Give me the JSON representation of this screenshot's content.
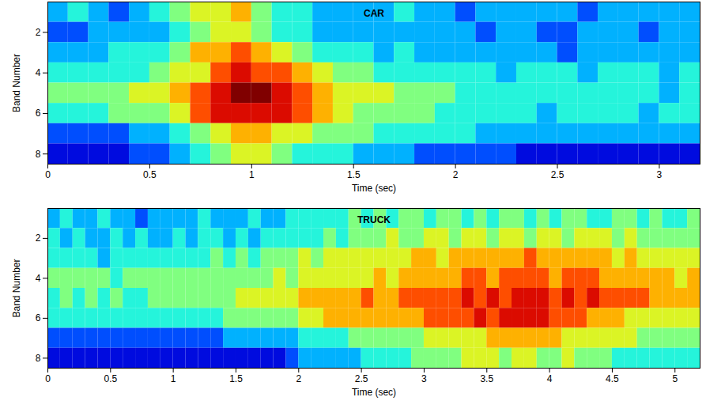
{
  "chart_data": [
    {
      "type": "heatmap",
      "title": "CAR",
      "x_label": "Time (sec)",
      "y_label": "Band Number",
      "bands": [
        1,
        2,
        3,
        4,
        5,
        6,
        7,
        8
      ],
      "time_edges": [
        0,
        0.1,
        0.2,
        0.3,
        0.4,
        0.5,
        0.6,
        0.7,
        0.8,
        0.9,
        1.0,
        1.1,
        1.2,
        1.3,
        1.4,
        1.5,
        1.6,
        1.7,
        1.8,
        1.9,
        2.0,
        2.1,
        2.2,
        2.3,
        2.4,
        2.5,
        2.6,
        2.7,
        2.8,
        2.9,
        3.0,
        3.1,
        3.2
      ],
      "cells": [
        [
          3,
          4,
          3,
          2,
          3,
          4,
          5,
          6,
          6,
          7,
          5,
          4,
          4,
          3,
          3,
          3,
          3,
          4,
          3,
          3,
          2,
          3,
          3,
          3,
          3,
          3,
          2,
          3,
          3,
          3,
          3,
          3
        ],
        [
          2,
          2,
          3,
          3,
          3,
          3,
          4,
          5,
          6,
          6,
          5,
          4,
          4,
          3,
          3,
          3,
          3,
          3,
          3,
          3,
          3,
          2,
          3,
          3,
          2,
          2,
          3,
          3,
          3,
          2,
          3,
          3
        ],
        [
          3,
          3,
          3,
          4,
          4,
          4,
          5,
          7,
          7,
          8,
          7,
          6,
          5,
          4,
          4,
          4,
          3,
          4,
          3,
          3,
          3,
          3,
          3,
          3,
          3,
          2,
          3,
          3,
          3,
          3,
          3,
          3
        ],
        [
          4,
          4,
          4,
          4,
          4,
          5,
          6,
          6,
          8,
          9,
          8,
          8,
          7,
          6,
          5,
          5,
          4,
          4,
          4,
          4,
          4,
          4,
          3,
          4,
          4,
          4,
          3,
          4,
          4,
          4,
          3,
          4
        ],
        [
          5,
          5,
          5,
          5,
          6,
          6,
          7,
          8,
          9,
          10,
          10,
          9,
          8,
          7,
          6,
          6,
          6,
          5,
          5,
          5,
          4,
          4,
          4,
          4,
          4,
          4,
          4,
          4,
          4,
          4,
          3,
          4
        ],
        [
          4,
          4,
          4,
          5,
          5,
          5,
          6,
          8,
          9,
          9,
          9,
          9,
          8,
          7,
          6,
          5,
          5,
          5,
          5,
          4,
          4,
          4,
          4,
          4,
          3,
          4,
          4,
          4,
          4,
          3,
          4,
          4
        ],
        [
          2,
          2,
          2,
          2,
          3,
          3,
          4,
          5,
          6,
          7,
          7,
          6,
          6,
          5,
          5,
          5,
          4,
          4,
          4,
          4,
          4,
          3,
          3,
          3,
          3,
          3,
          3,
          3,
          3,
          3,
          3,
          3
        ],
        [
          1,
          1,
          1,
          1,
          2,
          2,
          3,
          4,
          5,
          6,
          6,
          5,
          4,
          4,
          4,
          3,
          3,
          3,
          2,
          2,
          2,
          2,
          2,
          1,
          1,
          1,
          1,
          1,
          1,
          1,
          1,
          1
        ]
      ],
      "crange": [
        0,
        10
      ],
      "xlim": [
        0,
        3.2
      ],
      "xticks": [
        0,
        0.5,
        1,
        1.5,
        2,
        2.5,
        3
      ],
      "ylim": [
        8.5,
        0.5
      ],
      "yticks": [
        2,
        4,
        6,
        8
      ]
    },
    {
      "type": "heatmap",
      "title": "TRUCK",
      "x_label": "Time (sec)",
      "y_label": "Band Number",
      "bands": [
        1,
        2,
        3,
        4,
        5,
        6,
        7,
        8
      ],
      "time_edges": [
        0,
        0.1,
        0.2,
        0.3,
        0.4,
        0.5,
        0.6,
        0.7,
        0.8,
        0.9,
        1.0,
        1.1,
        1.2,
        1.3,
        1.4,
        1.5,
        1.6,
        1.7,
        1.8,
        1.9,
        2.0,
        2.1,
        2.2,
        2.3,
        2.4,
        2.5,
        2.6,
        2.7,
        2.8,
        2.9,
        3.0,
        3.1,
        3.2,
        3.3,
        3.4,
        3.5,
        3.6,
        3.7,
        3.8,
        3.9,
        4.0,
        4.1,
        4.2,
        4.3,
        4.4,
        4.5,
        4.6,
        4.7,
        4.8,
        4.9,
        5.0,
        5.1,
        5.2
      ],
      "cells": [
        [
          3,
          4,
          3,
          3,
          4,
          3,
          3,
          2,
          3,
          3,
          3,
          3,
          4,
          3,
          3,
          3,
          4,
          3,
          3,
          4,
          4,
          4,
          4,
          4,
          5,
          4,
          5,
          4,
          5,
          5,
          4,
          5,
          5,
          4,
          5,
          4,
          5,
          5,
          4,
          5,
          4,
          5,
          5,
          4,
          4,
          5,
          5,
          4,
          5,
          4,
          4,
          5
        ],
        [
          4,
          3,
          4,
          3,
          3,
          4,
          3,
          4,
          3,
          3,
          4,
          3,
          4,
          4,
          3,
          4,
          3,
          4,
          4,
          4,
          4,
          4,
          5,
          4,
          5,
          5,
          5,
          6,
          5,
          5,
          6,
          6,
          5,
          6,
          6,
          5,
          6,
          6,
          5,
          6,
          6,
          5,
          6,
          6,
          6,
          5,
          6,
          5,
          5,
          5,
          5,
          5
        ],
        [
          4,
          4,
          4,
          4,
          3,
          4,
          4,
          4,
          4,
          4,
          4,
          4,
          4,
          5,
          4,
          5,
          4,
          5,
          5,
          5,
          6,
          5,
          6,
          6,
          6,
          6,
          6,
          6,
          6,
          7,
          7,
          6,
          7,
          7,
          7,
          7,
          7,
          7,
          8,
          7,
          7,
          7,
          7,
          7,
          7,
          6,
          7,
          6,
          6,
          6,
          6,
          6
        ],
        [
          5,
          5,
          5,
          5,
          5,
          4,
          5,
          5,
          5,
          5,
          5,
          5,
          5,
          5,
          5,
          5,
          5,
          5,
          6,
          5,
          6,
          6,
          6,
          6,
          6,
          6,
          7,
          6,
          7,
          7,
          7,
          7,
          7,
          8,
          8,
          7,
          8,
          8,
          8,
          8,
          7,
          8,
          8,
          8,
          7,
          7,
          7,
          7,
          7,
          7,
          6,
          7
        ],
        [
          4,
          5,
          4,
          5,
          4,
          5,
          4,
          4,
          5,
          5,
          5,
          5,
          5,
          5,
          5,
          6,
          6,
          6,
          6,
          6,
          7,
          7,
          7,
          7,
          7,
          8,
          7,
          7,
          8,
          8,
          8,
          8,
          8,
          9,
          8,
          9,
          8,
          9,
          9,
          9,
          8,
          9,
          8,
          9,
          8,
          8,
          8,
          8,
          7,
          7,
          7,
          7
        ],
        [
          4,
          4,
          4,
          4,
          4,
          4,
          4,
          4,
          4,
          4,
          4,
          4,
          4,
          4,
          5,
          5,
          5,
          5,
          5,
          5,
          6,
          6,
          7,
          7,
          7,
          7,
          7,
          7,
          7,
          7,
          8,
          8,
          8,
          8,
          9,
          8,
          9,
          9,
          9,
          9,
          8,
          8,
          8,
          7,
          7,
          7,
          6,
          6,
          6,
          6,
          6,
          6
        ],
        [
          2,
          2,
          2,
          2,
          2,
          2,
          2,
          2,
          2,
          2,
          2,
          2,
          2,
          2,
          3,
          3,
          3,
          3,
          3,
          3,
          4,
          4,
          4,
          4,
          5,
          5,
          5,
          5,
          5,
          5,
          6,
          6,
          6,
          6,
          6,
          7,
          7,
          7,
          7,
          7,
          7,
          6,
          6,
          6,
          6,
          6,
          6,
          5,
          5,
          5,
          5,
          5
        ],
        [
          1,
          1,
          1,
          1,
          1,
          1,
          1,
          1,
          1,
          1,
          1,
          1,
          1,
          1,
          1,
          1,
          1,
          1,
          1,
          2,
          3,
          3,
          3,
          3,
          3,
          4,
          4,
          4,
          4,
          5,
          5,
          5,
          5,
          6,
          6,
          6,
          5,
          6,
          6,
          5,
          5,
          6,
          5,
          5,
          5,
          4,
          4,
          4,
          4,
          4,
          4,
          4
        ]
      ],
      "crange": [
        0,
        10
      ],
      "xlim": [
        0,
        5.2
      ],
      "xticks": [
        0,
        0.5,
        1,
        1.5,
        2,
        2.5,
        3,
        3.5,
        4,
        4.5,
        5
      ],
      "ylim": [
        8.5,
        0.5
      ],
      "yticks": [
        2,
        4,
        6,
        8
      ]
    }
  ]
}
